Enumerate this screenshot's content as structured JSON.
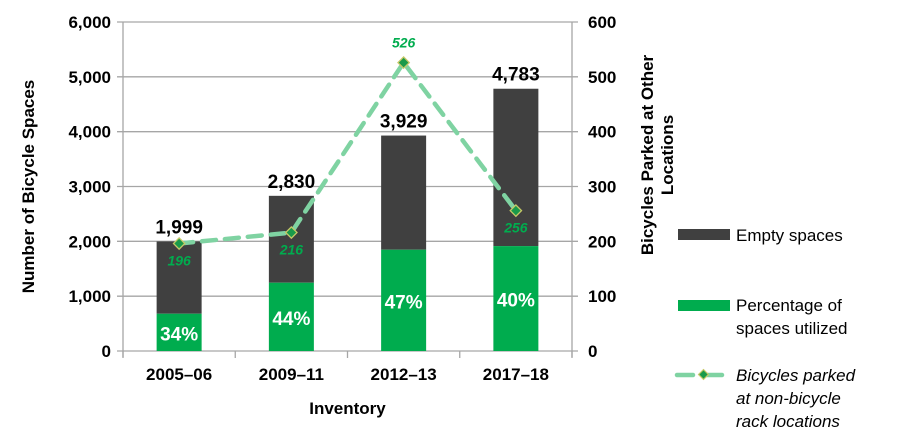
{
  "chart_data": {
    "type": "bar",
    "stacked": true,
    "categories": [
      "2005–06",
      "2009–11",
      "2012–13",
      "2017–18"
    ],
    "xlabel": "Inventory",
    "ylabel": "Number of Bicycle Spaces",
    "ylabel_right": [
      "Bicycles Parked at Other",
      "Locations"
    ],
    "ylim": [
      0,
      6000
    ],
    "ylim_right": [
      0,
      600
    ],
    "yticks": [
      "0",
      "1,000",
      "2,000",
      "3,000",
      "4,000",
      "5,000",
      "6,000"
    ],
    "yticks_right": [
      "0",
      "100",
      "200",
      "300",
      "400",
      "500",
      "600"
    ],
    "grid": true,
    "totals": [
      1999,
      2830,
      3929,
      4783
    ],
    "total_labels": [
      "1,999",
      "2,830",
      "3,929",
      "4,783"
    ],
    "utilized_percent": [
      34,
      44,
      47,
      40
    ],
    "utilized_labels": [
      "34%",
      "44%",
      "47%",
      "40%"
    ],
    "line_values": [
      196,
      216,
      526,
      256
    ],
    "line_labels": [
      "196",
      "216",
      "526",
      "256"
    ],
    "legend_position": "right",
    "legend": [
      {
        "label": "Empty spaces",
        "color": "#404040"
      },
      {
        "label": "Percentage of spaces utilized",
        "lines": [
          "Percentage of",
          "spaces utilized"
        ],
        "color": "#00ac4e"
      },
      {
        "label": "Bicycles parked at non-bicycle rack locations",
        "lines": [
          "Bicycles parked",
          "at non-bicycle",
          "rack locations"
        ],
        "color": "#7fd3a2"
      }
    ],
    "colors": {
      "empty": "#404040",
      "utilized": "#00ac4e",
      "line": "#7fd3a2",
      "line_label": "#00ac4e",
      "grid": "#a6a6a6"
    }
  }
}
